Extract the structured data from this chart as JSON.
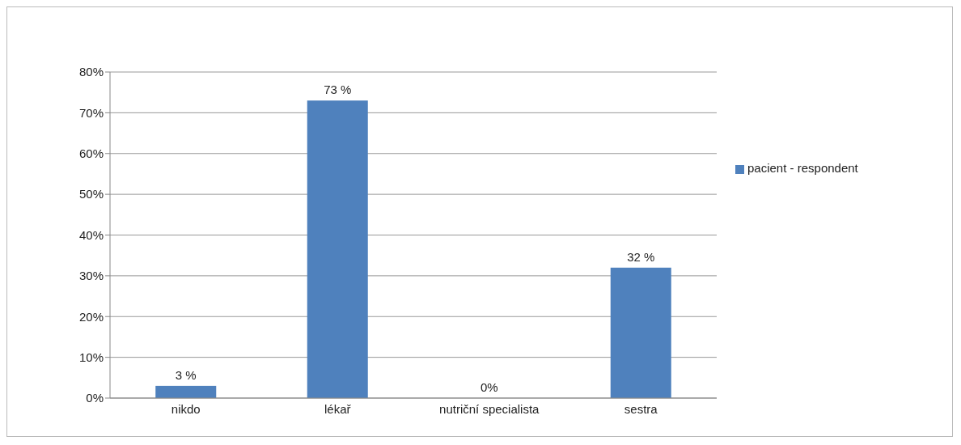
{
  "chart_data": {
    "type": "bar",
    "categories": [
      "nikdo",
      "lékař",
      "nutriční specialista",
      "sestra"
    ],
    "series": [
      {
        "name": "pacient - respondent",
        "color": "#4f81bd",
        "values": [
          3,
          73,
          0,
          32
        ],
        "value_labels": [
          "3 %",
          "73 %",
          "0%",
          "32 %"
        ]
      }
    ],
    "ylim": [
      0,
      80
    ],
    "yticks": [
      {
        "value": 0,
        "label": "0%"
      },
      {
        "value": 10,
        "label": "10%"
      },
      {
        "value": 20,
        "label": "20%"
      },
      {
        "value": 30,
        "label": "30%"
      },
      {
        "value": 40,
        "label": "40%"
      },
      {
        "value": 50,
        "label": "50%"
      },
      {
        "value": 60,
        "label": "60%"
      },
      {
        "value": 70,
        "label": "70%"
      },
      {
        "value": 80,
        "label": "80%"
      }
    ],
    "grid": "y",
    "legend": "right"
  }
}
